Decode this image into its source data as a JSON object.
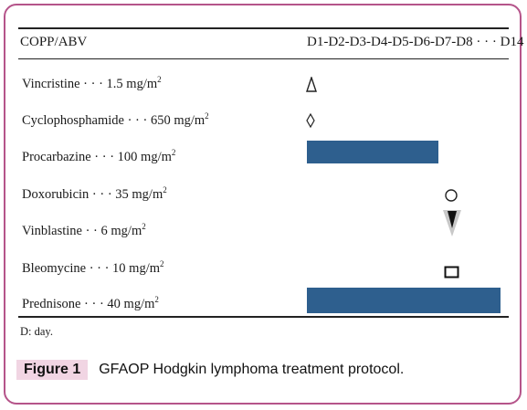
{
  "header": {
    "regimen": "COPP/ABV",
    "days": "D1-D2-D3-D4-D5-D6-D7-D8 · · · D14"
  },
  "drugs": [
    {
      "name": "Vincristine",
      "dose": "1.5 mg/m",
      "sup": "2",
      "marker": "triangle-outline"
    },
    {
      "name": "Cyclophosphamide",
      "dose": "650 mg/m",
      "sup": "2",
      "marker": "diamond-outline"
    },
    {
      "name": "Procarbazine",
      "dose": "100 mg/m",
      "sup": "2",
      "marker": "bar"
    },
    {
      "name": "Doxorubicin",
      "dose": "35 mg/m",
      "sup": "2",
      "marker": "circle-outline"
    },
    {
      "name": "Vinblastine",
      "dose": "6 mg/m",
      "sup": "2",
      "marker": "triangle-filled-down"
    },
    {
      "name": "Bleomycine",
      "dose": "10 mg/m",
      "sup": "2",
      "marker": "square-outline"
    },
    {
      "name": "Prednisone",
      "dose": "40 mg/m",
      "sup": "2",
      "marker": "bar"
    }
  ],
  "row_labels": [
    "Vincristine · · · 1.5 mg/m",
    "Cyclophosphamide · · · 650 mg/m",
    "Procarbazine · · · 100 mg/m",
    "Doxorubicin · · · 35 mg/m",
    "Vinblastine · · 6 mg/m",
    "Bleomycine · · · 10 mg/m",
    "Prednisone · · · 40 mg/m"
  ],
  "footnote": "D: day.",
  "caption": {
    "label": "Figure 1",
    "text": "GFAOP Hodgkin lymphoma treatment protocol."
  },
  "colors": {
    "bar": "#2e5f8e",
    "frame": "#b5548a",
    "label_bg": "#f1d5e3"
  }
}
